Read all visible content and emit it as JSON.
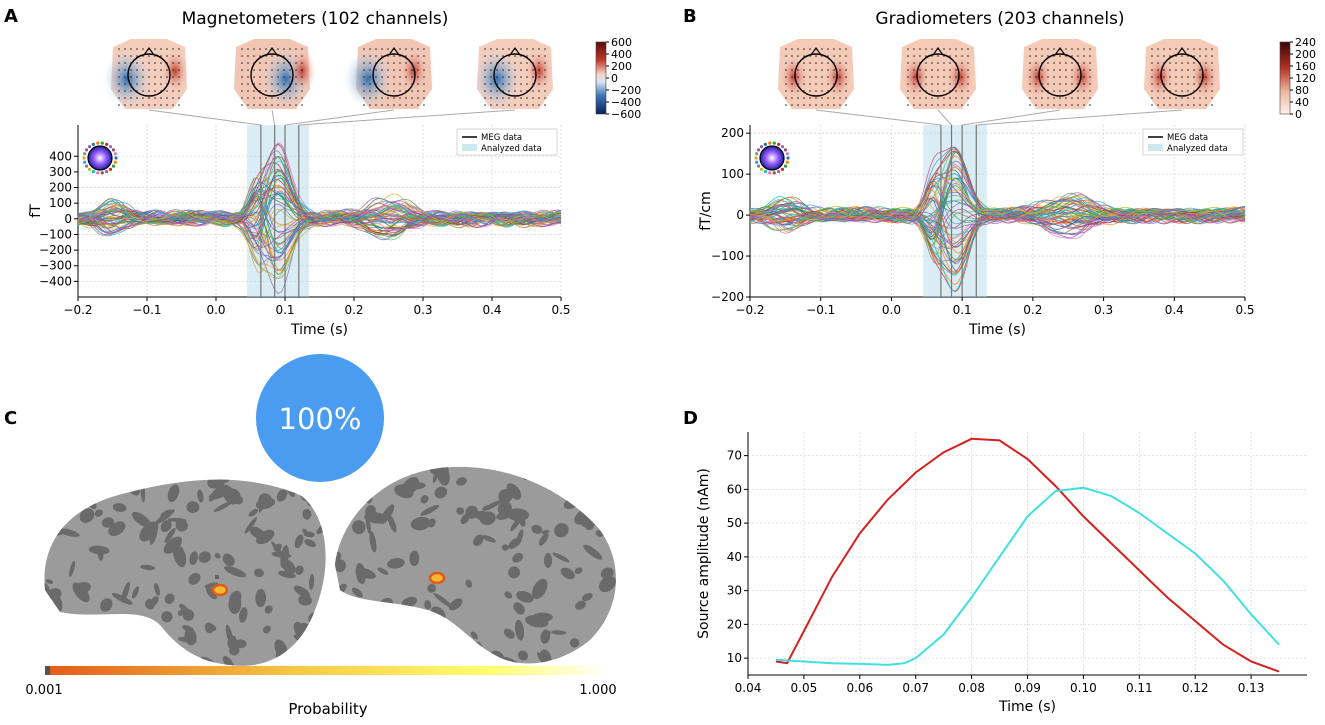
{
  "colors": {
    "meg": "#000000",
    "analyzed": "#add8e6",
    "red_curve": "#d62020",
    "cyan_curve": "#40e0e0",
    "badge": "#4a9cf0",
    "heat_low": "#e35b19",
    "heat_high": "#fffff0",
    "grid": "#d8d8d8"
  },
  "panelA": {
    "letter": "A",
    "title": "Magnetometers (102 channels)",
    "colorbar_ticks": [
      "600",
      "400",
      "200",
      "0",
      "−200",
      "−400",
      "−600"
    ],
    "n_topomaps": 4
  },
  "panelB": {
    "letter": "B",
    "title": "Gradiometers (203 channels)",
    "colorbar_ticks": [
      "240",
      "200",
      "160",
      "120",
      "80",
      "40",
      "0"
    ],
    "n_topomaps": 4
  },
  "panelC": {
    "letter": "C",
    "badge": "100%",
    "cbar_min": "0.001",
    "cbar_max": "1.000",
    "cbar_label": "Probability"
  },
  "panelD": {
    "letter": "D"
  },
  "chart_data": [
    {
      "id": "A",
      "type": "line",
      "title": "Magnetometers (102 channels)",
      "xlabel": "Time (s)",
      "ylabel": "fT",
      "xlim": [
        -0.2,
        0.5
      ],
      "ylim": [
        -500,
        600
      ],
      "xticks": [
        -0.2,
        -0.1,
        0.0,
        0.1,
        0.2,
        0.3,
        0.4,
        0.5
      ],
      "xtick_labels": [
        "−0.2",
        "−0.1",
        "0.0",
        "0.1",
        "0.2",
        "0.3",
        "0.4",
        "0.5"
      ],
      "yticks": [
        -400,
        -300,
        -200,
        -100,
        0,
        100,
        200,
        300,
        400
      ],
      "ytick_labels": [
        "−400",
        "−300",
        "−200",
        "−100",
        "0",
        "100",
        "200",
        "300",
        "400"
      ],
      "analyzed_window": [
        0.045,
        0.135
      ],
      "marker_times": [
        0.065,
        0.085,
        0.1,
        0.12
      ],
      "legend": [
        "MEG data",
        "Analyzed data"
      ],
      "legend_position": "top-right",
      "grid": true,
      "n_channels": 102,
      "peak_amplitude": 480
    },
    {
      "id": "B",
      "type": "line",
      "title": "Gradiometers (203 channels)",
      "xlabel": "Time (s)",
      "ylabel": "fT/cm",
      "xlim": [
        -0.2,
        0.5
      ],
      "ylim": [
        -200,
        220
      ],
      "xticks": [
        -0.2,
        -0.1,
        0.0,
        0.1,
        0.2,
        0.3,
        0.4,
        0.5
      ],
      "xtick_labels": [
        "−0.2",
        "−0.1",
        "0.0",
        "0.1",
        "0.2",
        "0.3",
        "0.4",
        "0.5"
      ],
      "yticks": [
        -200,
        -100,
        0,
        100,
        200
      ],
      "ytick_labels": [
        "−200",
        "−100",
        "0",
        "100",
        "200"
      ],
      "analyzed_window": [
        0.045,
        0.135
      ],
      "marker_times": [
        0.07,
        0.085,
        0.1,
        0.12
      ],
      "legend": [
        "MEG data",
        "Analyzed data"
      ],
      "legend_position": "top-right",
      "grid": true,
      "n_channels": 203,
      "peak_amplitude": 180
    },
    {
      "id": "D",
      "type": "line",
      "xlabel": "Time (s)",
      "ylabel": "Source amplitude (nAm)",
      "xlim": [
        0.04,
        0.14
      ],
      "ylim": [
        5,
        77
      ],
      "xticks": [
        0.04,
        0.05,
        0.06,
        0.07,
        0.08,
        0.09,
        0.1,
        0.11,
        0.12,
        0.13
      ],
      "xtick_labels": [
        "0.04",
        "0.05",
        "0.06",
        "0.07",
        "0.08",
        "0.09",
        "0.10",
        "0.11",
        "0.12",
        "0.13"
      ],
      "yticks": [
        10,
        20,
        30,
        40,
        50,
        60,
        70
      ],
      "ytick_labels": [
        "10",
        "20",
        "30",
        "40",
        "50",
        "60",
        "70"
      ],
      "grid": true,
      "series": [
        {
          "name": "red",
          "color": "#d62020",
          "x": [
            0.045,
            0.047,
            0.05,
            0.055,
            0.06,
            0.065,
            0.07,
            0.075,
            0.08,
            0.085,
            0.09,
            0.095,
            0.1,
            0.105,
            0.11,
            0.115,
            0.12,
            0.125,
            0.13,
            0.135
          ],
          "y": [
            9,
            8.5,
            18,
            34,
            47,
            57,
            65,
            71,
            75,
            74.5,
            69,
            61,
            52,
            44,
            36,
            28,
            21,
            14,
            9,
            6
          ]
        },
        {
          "name": "cyan",
          "color": "#40e0e0",
          "x": [
            0.045,
            0.05,
            0.055,
            0.06,
            0.065,
            0.068,
            0.07,
            0.075,
            0.08,
            0.085,
            0.09,
            0.095,
            0.1,
            0.105,
            0.11,
            0.115,
            0.12,
            0.125,
            0.13,
            0.135
          ],
          "y": [
            9.5,
            9,
            8.5,
            8.3,
            8,
            8.5,
            10,
            17,
            28,
            40,
            52,
            59.5,
            60.5,
            58,
            53,
            47,
            41,
            33,
            23,
            14
          ]
        }
      ]
    }
  ]
}
